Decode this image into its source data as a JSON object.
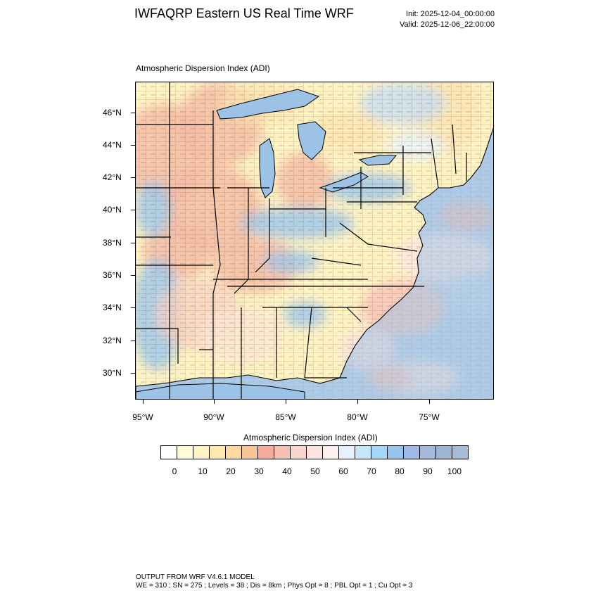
{
  "header": {
    "title": "IWFAQRP Eastern US Real Time WRF",
    "init": "Init: 2025-12-04_00:00:00",
    "valid": "Valid: 2025-12-06_22:00:00"
  },
  "map": {
    "subtitle": "Atmospheric Dispersion Index   (ADI)",
    "lat_labels": [
      "46°N",
      "44°N",
      "42°N",
      "40°N",
      "38°N",
      "36°N",
      "34°N",
      "32°N",
      "30°N"
    ],
    "lon_labels": [
      "95°W",
      "90°W",
      "85°W",
      "80°W",
      "75°W"
    ],
    "colors": {
      "water": "#aecbe6",
      "lake": "#9cc3e6",
      "land_base": "#fff3c4",
      "low": "#fde3b0",
      "mid": "#f4b9a4",
      "high": "#9ec5ea",
      "border": "#000000"
    }
  },
  "colorbar": {
    "title": "Atmospheric Dispersion Index  (ADI)",
    "colors": [
      "#ffffff",
      "#fffbd8",
      "#fff3c4",
      "#fde9b0",
      "#fbd9a0",
      "#f7c59a",
      "#f4ad9c",
      "#f4c0b4",
      "#f7d4cc",
      "#fbe4e0",
      "#fbf0ee",
      "#e7f1fd",
      "#c6e6fa",
      "#a5d8f5",
      "#9ac4f0",
      "#a0b8e8",
      "#a7b8de",
      "#9fb4d0",
      "#a6bcd4"
    ],
    "labels": [
      "0",
      "10",
      "20",
      "30",
      "40",
      "50",
      "60",
      "70",
      "80",
      "90",
      "100"
    ]
  },
  "footer": {
    "line1": "OUTPUT FROM WRF V4.6.1 MODEL",
    "line2": "WE = 310 ; SN = 275 ; Levels = 38 ; Dis = 8km ; Phys Opt = 8 ; PBL Opt = 1 ; Cu Opt = 3"
  }
}
